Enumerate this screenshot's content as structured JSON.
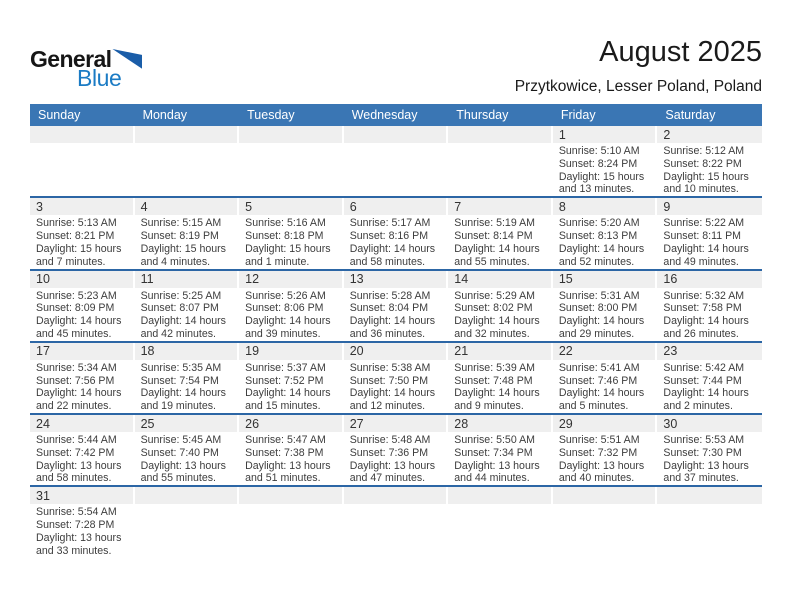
{
  "logo": {
    "general": "General",
    "blue": "Blue"
  },
  "header": {
    "title": "August 2025",
    "subtitle": "Przytkowice, Lesser Poland, Poland"
  },
  "weekdays": [
    "Sunday",
    "Monday",
    "Tuesday",
    "Wednesday",
    "Thursday",
    "Friday",
    "Saturday"
  ],
  "weeks": [
    [
      {
        "day": ""
      },
      {
        "day": ""
      },
      {
        "day": ""
      },
      {
        "day": ""
      },
      {
        "day": ""
      },
      {
        "day": "1",
        "sunrise": "Sunrise: 5:10 AM",
        "sunset": "Sunset: 8:24 PM",
        "daylight": "Daylight: 15 hours and 13 minutes."
      },
      {
        "day": "2",
        "sunrise": "Sunrise: 5:12 AM",
        "sunset": "Sunset: 8:22 PM",
        "daylight": "Daylight: 15 hours and 10 minutes."
      }
    ],
    [
      {
        "day": "3",
        "sunrise": "Sunrise: 5:13 AM",
        "sunset": "Sunset: 8:21 PM",
        "daylight": "Daylight: 15 hours and 7 minutes."
      },
      {
        "day": "4",
        "sunrise": "Sunrise: 5:15 AM",
        "sunset": "Sunset: 8:19 PM",
        "daylight": "Daylight: 15 hours and 4 minutes."
      },
      {
        "day": "5",
        "sunrise": "Sunrise: 5:16 AM",
        "sunset": "Sunset: 8:18 PM",
        "daylight": "Daylight: 15 hours and 1 minute."
      },
      {
        "day": "6",
        "sunrise": "Sunrise: 5:17 AM",
        "sunset": "Sunset: 8:16 PM",
        "daylight": "Daylight: 14 hours and 58 minutes."
      },
      {
        "day": "7",
        "sunrise": "Sunrise: 5:19 AM",
        "sunset": "Sunset: 8:14 PM",
        "daylight": "Daylight: 14 hours and 55 minutes."
      },
      {
        "day": "8",
        "sunrise": "Sunrise: 5:20 AM",
        "sunset": "Sunset: 8:13 PM",
        "daylight": "Daylight: 14 hours and 52 minutes."
      },
      {
        "day": "9",
        "sunrise": "Sunrise: 5:22 AM",
        "sunset": "Sunset: 8:11 PM",
        "daylight": "Daylight: 14 hours and 49 minutes."
      }
    ],
    [
      {
        "day": "10",
        "sunrise": "Sunrise: 5:23 AM",
        "sunset": "Sunset: 8:09 PM",
        "daylight": "Daylight: 14 hours and 45 minutes."
      },
      {
        "day": "11",
        "sunrise": "Sunrise: 5:25 AM",
        "sunset": "Sunset: 8:07 PM",
        "daylight": "Daylight: 14 hours and 42 minutes."
      },
      {
        "day": "12",
        "sunrise": "Sunrise: 5:26 AM",
        "sunset": "Sunset: 8:06 PM",
        "daylight": "Daylight: 14 hours and 39 minutes."
      },
      {
        "day": "13",
        "sunrise": "Sunrise: 5:28 AM",
        "sunset": "Sunset: 8:04 PM",
        "daylight": "Daylight: 14 hours and 36 minutes."
      },
      {
        "day": "14",
        "sunrise": "Sunrise: 5:29 AM",
        "sunset": "Sunset: 8:02 PM",
        "daylight": "Daylight: 14 hours and 32 minutes."
      },
      {
        "day": "15",
        "sunrise": "Sunrise: 5:31 AM",
        "sunset": "Sunset: 8:00 PM",
        "daylight": "Daylight: 14 hours and 29 minutes."
      },
      {
        "day": "16",
        "sunrise": "Sunrise: 5:32 AM",
        "sunset": "Sunset: 7:58 PM",
        "daylight": "Daylight: 14 hours and 26 minutes."
      }
    ],
    [
      {
        "day": "17",
        "sunrise": "Sunrise: 5:34 AM",
        "sunset": "Sunset: 7:56 PM",
        "daylight": "Daylight: 14 hours and 22 minutes."
      },
      {
        "day": "18",
        "sunrise": "Sunrise: 5:35 AM",
        "sunset": "Sunset: 7:54 PM",
        "daylight": "Daylight: 14 hours and 19 minutes."
      },
      {
        "day": "19",
        "sunrise": "Sunrise: 5:37 AM",
        "sunset": "Sunset: 7:52 PM",
        "daylight": "Daylight: 14 hours and 15 minutes."
      },
      {
        "day": "20",
        "sunrise": "Sunrise: 5:38 AM",
        "sunset": "Sunset: 7:50 PM",
        "daylight": "Daylight: 14 hours and 12 minutes."
      },
      {
        "day": "21",
        "sunrise": "Sunrise: 5:39 AM",
        "sunset": "Sunset: 7:48 PM",
        "daylight": "Daylight: 14 hours and 9 minutes."
      },
      {
        "day": "22",
        "sunrise": "Sunrise: 5:41 AM",
        "sunset": "Sunset: 7:46 PM",
        "daylight": "Daylight: 14 hours and 5 minutes."
      },
      {
        "day": "23",
        "sunrise": "Sunrise: 5:42 AM",
        "sunset": "Sunset: 7:44 PM",
        "daylight": "Daylight: 14 hours and 2 minutes."
      }
    ],
    [
      {
        "day": "24",
        "sunrise": "Sunrise: 5:44 AM",
        "sunset": "Sunset: 7:42 PM",
        "daylight": "Daylight: 13 hours and 58 minutes."
      },
      {
        "day": "25",
        "sunrise": "Sunrise: 5:45 AM",
        "sunset": "Sunset: 7:40 PM",
        "daylight": "Daylight: 13 hours and 55 minutes."
      },
      {
        "day": "26",
        "sunrise": "Sunrise: 5:47 AM",
        "sunset": "Sunset: 7:38 PM",
        "daylight": "Daylight: 13 hours and 51 minutes."
      },
      {
        "day": "27",
        "sunrise": "Sunrise: 5:48 AM",
        "sunset": "Sunset: 7:36 PM",
        "daylight": "Daylight: 13 hours and 47 minutes."
      },
      {
        "day": "28",
        "sunrise": "Sunrise: 5:50 AM",
        "sunset": "Sunset: 7:34 PM",
        "daylight": "Daylight: 13 hours and 44 minutes."
      },
      {
        "day": "29",
        "sunrise": "Sunrise: 5:51 AM",
        "sunset": "Sunset: 7:32 PM",
        "daylight": "Daylight: 13 hours and 40 minutes."
      },
      {
        "day": "30",
        "sunrise": "Sunrise: 5:53 AM",
        "sunset": "Sunset: 7:30 PM",
        "daylight": "Daylight: 13 hours and 37 minutes."
      }
    ],
    [
      {
        "day": "31",
        "sunrise": "Sunrise: 5:54 AM",
        "sunset": "Sunset: 7:28 PM",
        "daylight": "Daylight: 13 hours and 33 minutes."
      },
      {
        "day": ""
      },
      {
        "day": ""
      },
      {
        "day": ""
      },
      {
        "day": ""
      },
      {
        "day": ""
      },
      {
        "day": ""
      }
    ]
  ],
  "colors": {
    "header_bar": "#3a76b4",
    "separator": "#2c66a5",
    "strip": "#efefef",
    "logo_blue": "#1b7bc4",
    "triangle": "#1a5da8"
  }
}
